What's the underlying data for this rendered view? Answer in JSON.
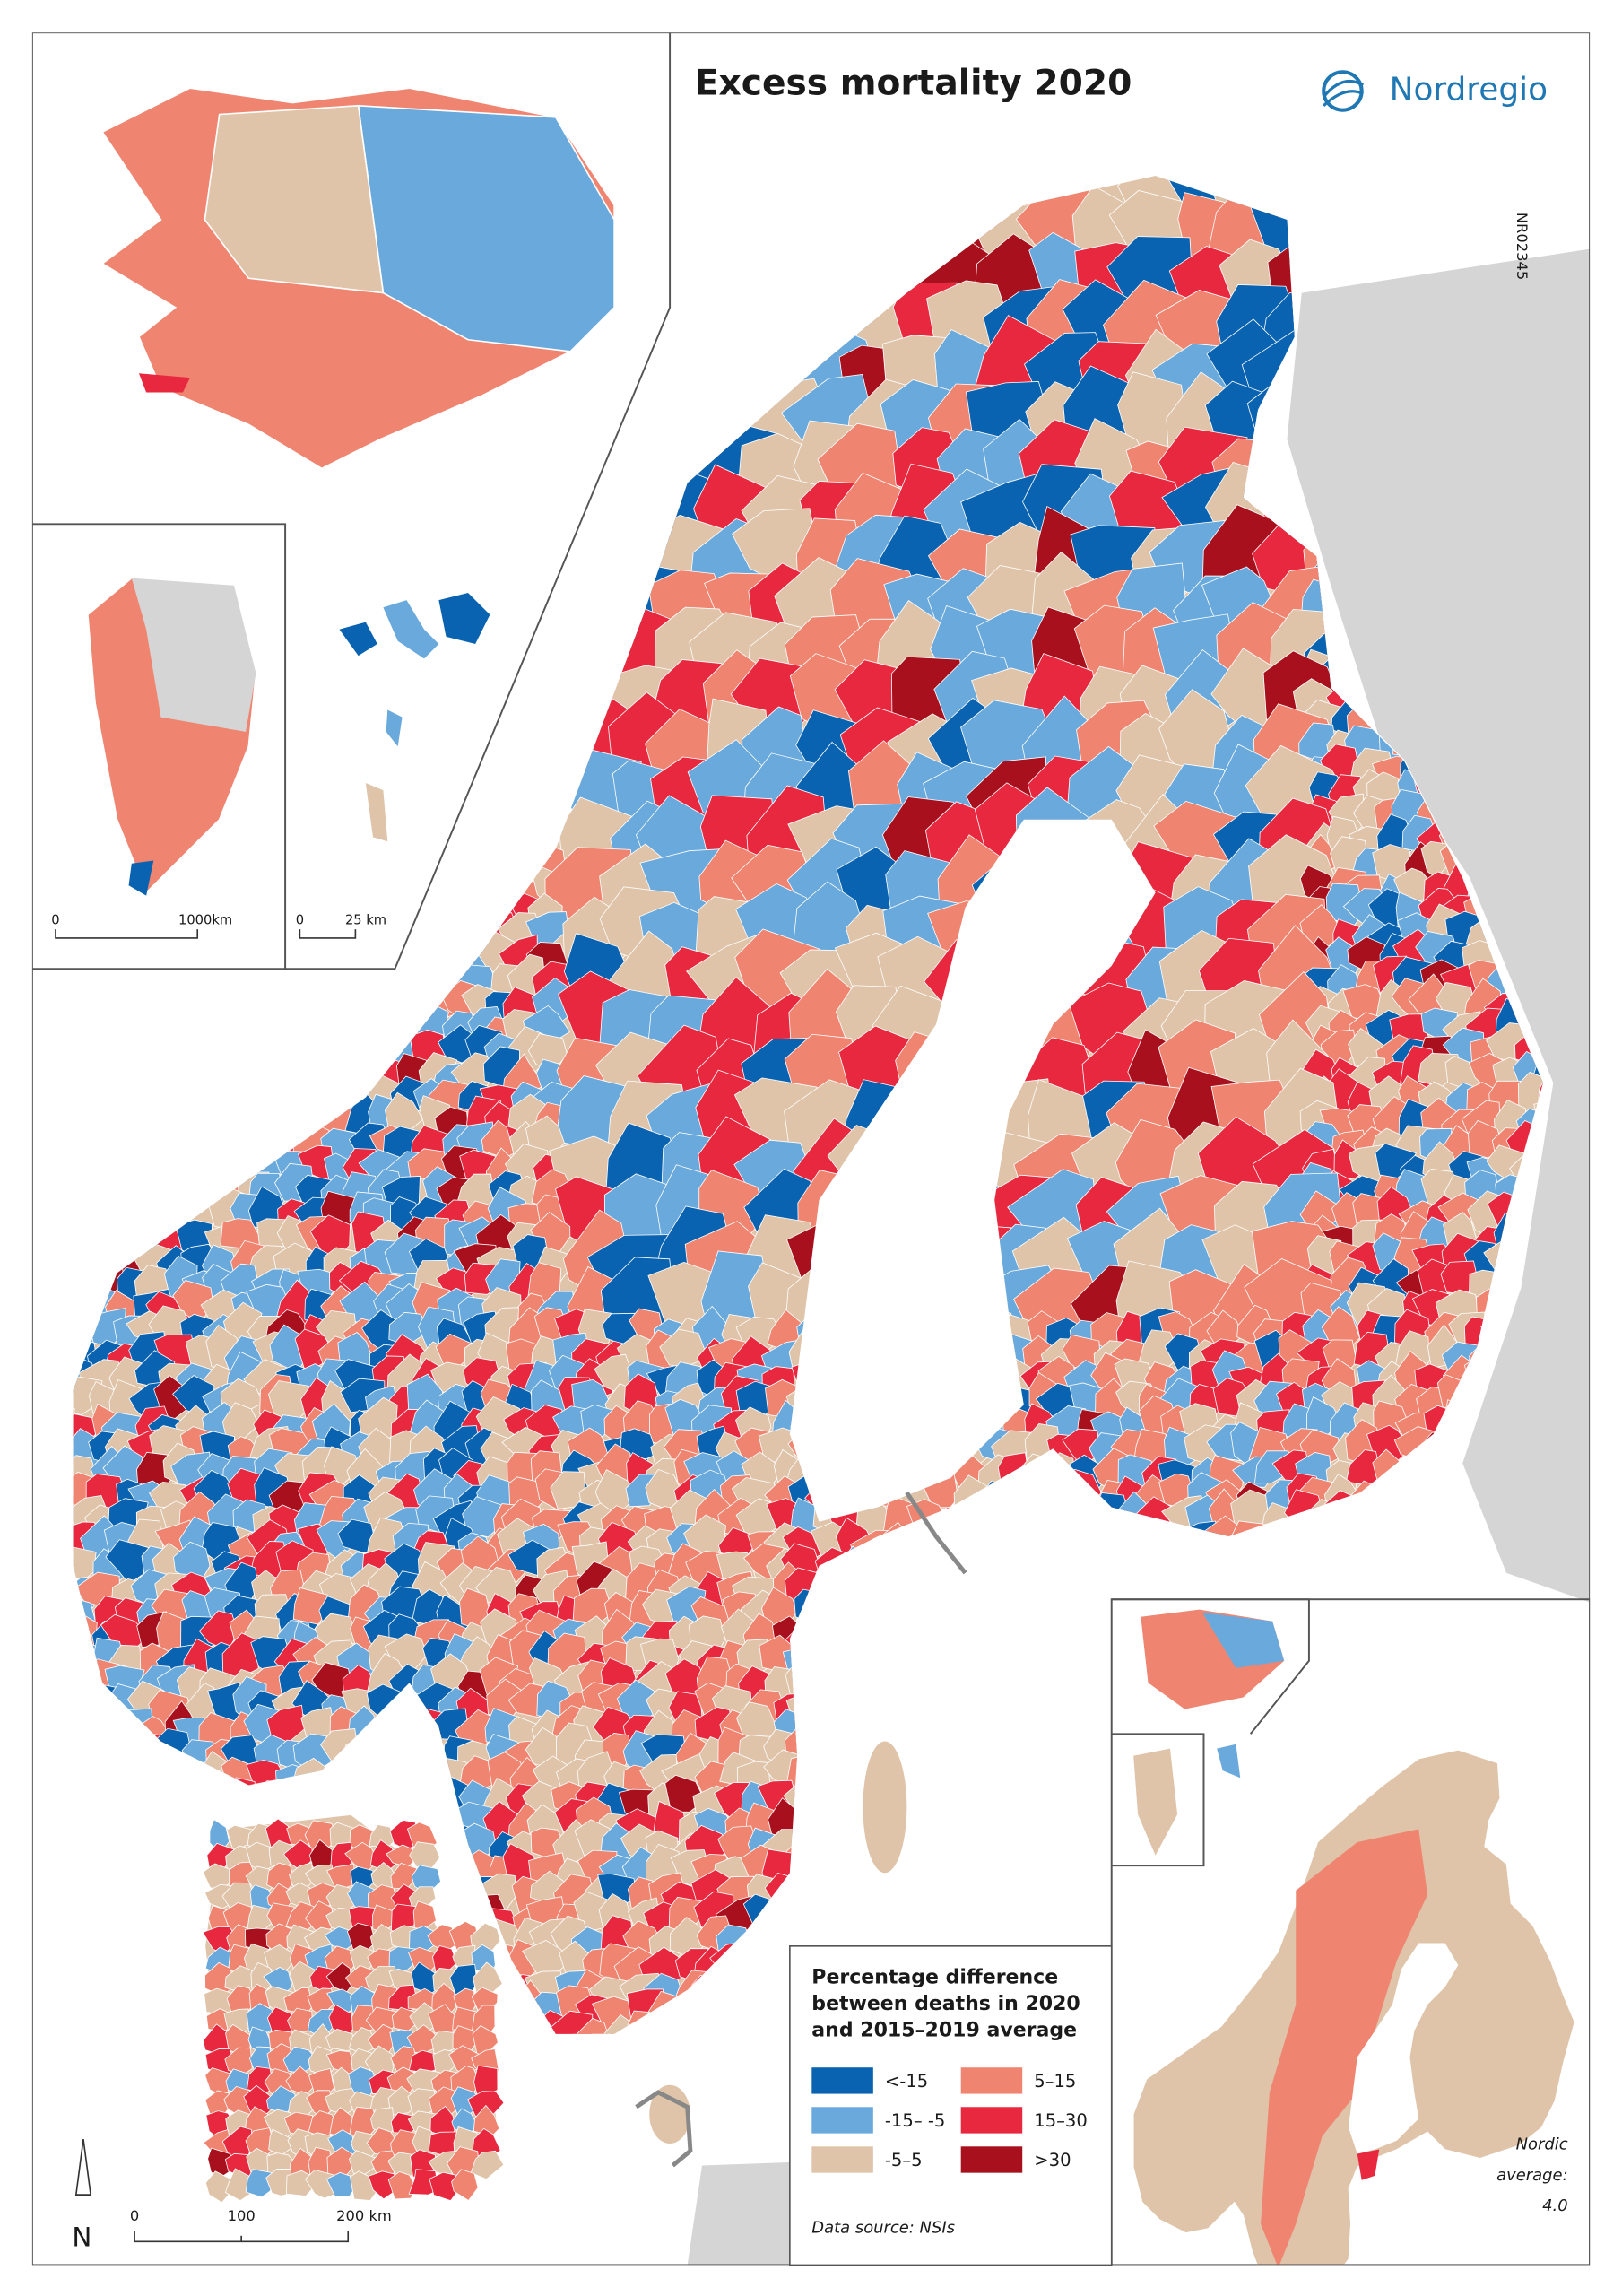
{
  "title": "Excess mortality 2020",
  "brand": "Nordregio",
  "map_id": "NR02345",
  "legend": {
    "title": [
      "Percentage difference",
      "between deaths in 2020",
      "and 2015–2019 average"
    ],
    "classes": [
      {
        "label": "<-15",
        "color": "#0a63b0"
      },
      {
        "label": "-15– -5",
        "color": "#6aa9dc"
      },
      {
        "label": "-5–5",
        "color": "#dfc4a9"
      },
      {
        "label": "5–15",
        "color": "#ef8570"
      },
      {
        "label": "15–30",
        "color": "#e8283f"
      },
      {
        "label": ">30",
        "color": "#a7101c"
      }
    ]
  },
  "scale_bars": {
    "main": [
      "0",
      "100",
      "200 km"
    ],
    "greenland": [
      "0",
      "1000km"
    ],
    "faroe": [
      "0",
      "25 km"
    ]
  },
  "north": "N",
  "source": "Data source: NSIs",
  "nordic_average": [
    "Nordic",
    "average:",
    "4.0"
  ]
}
